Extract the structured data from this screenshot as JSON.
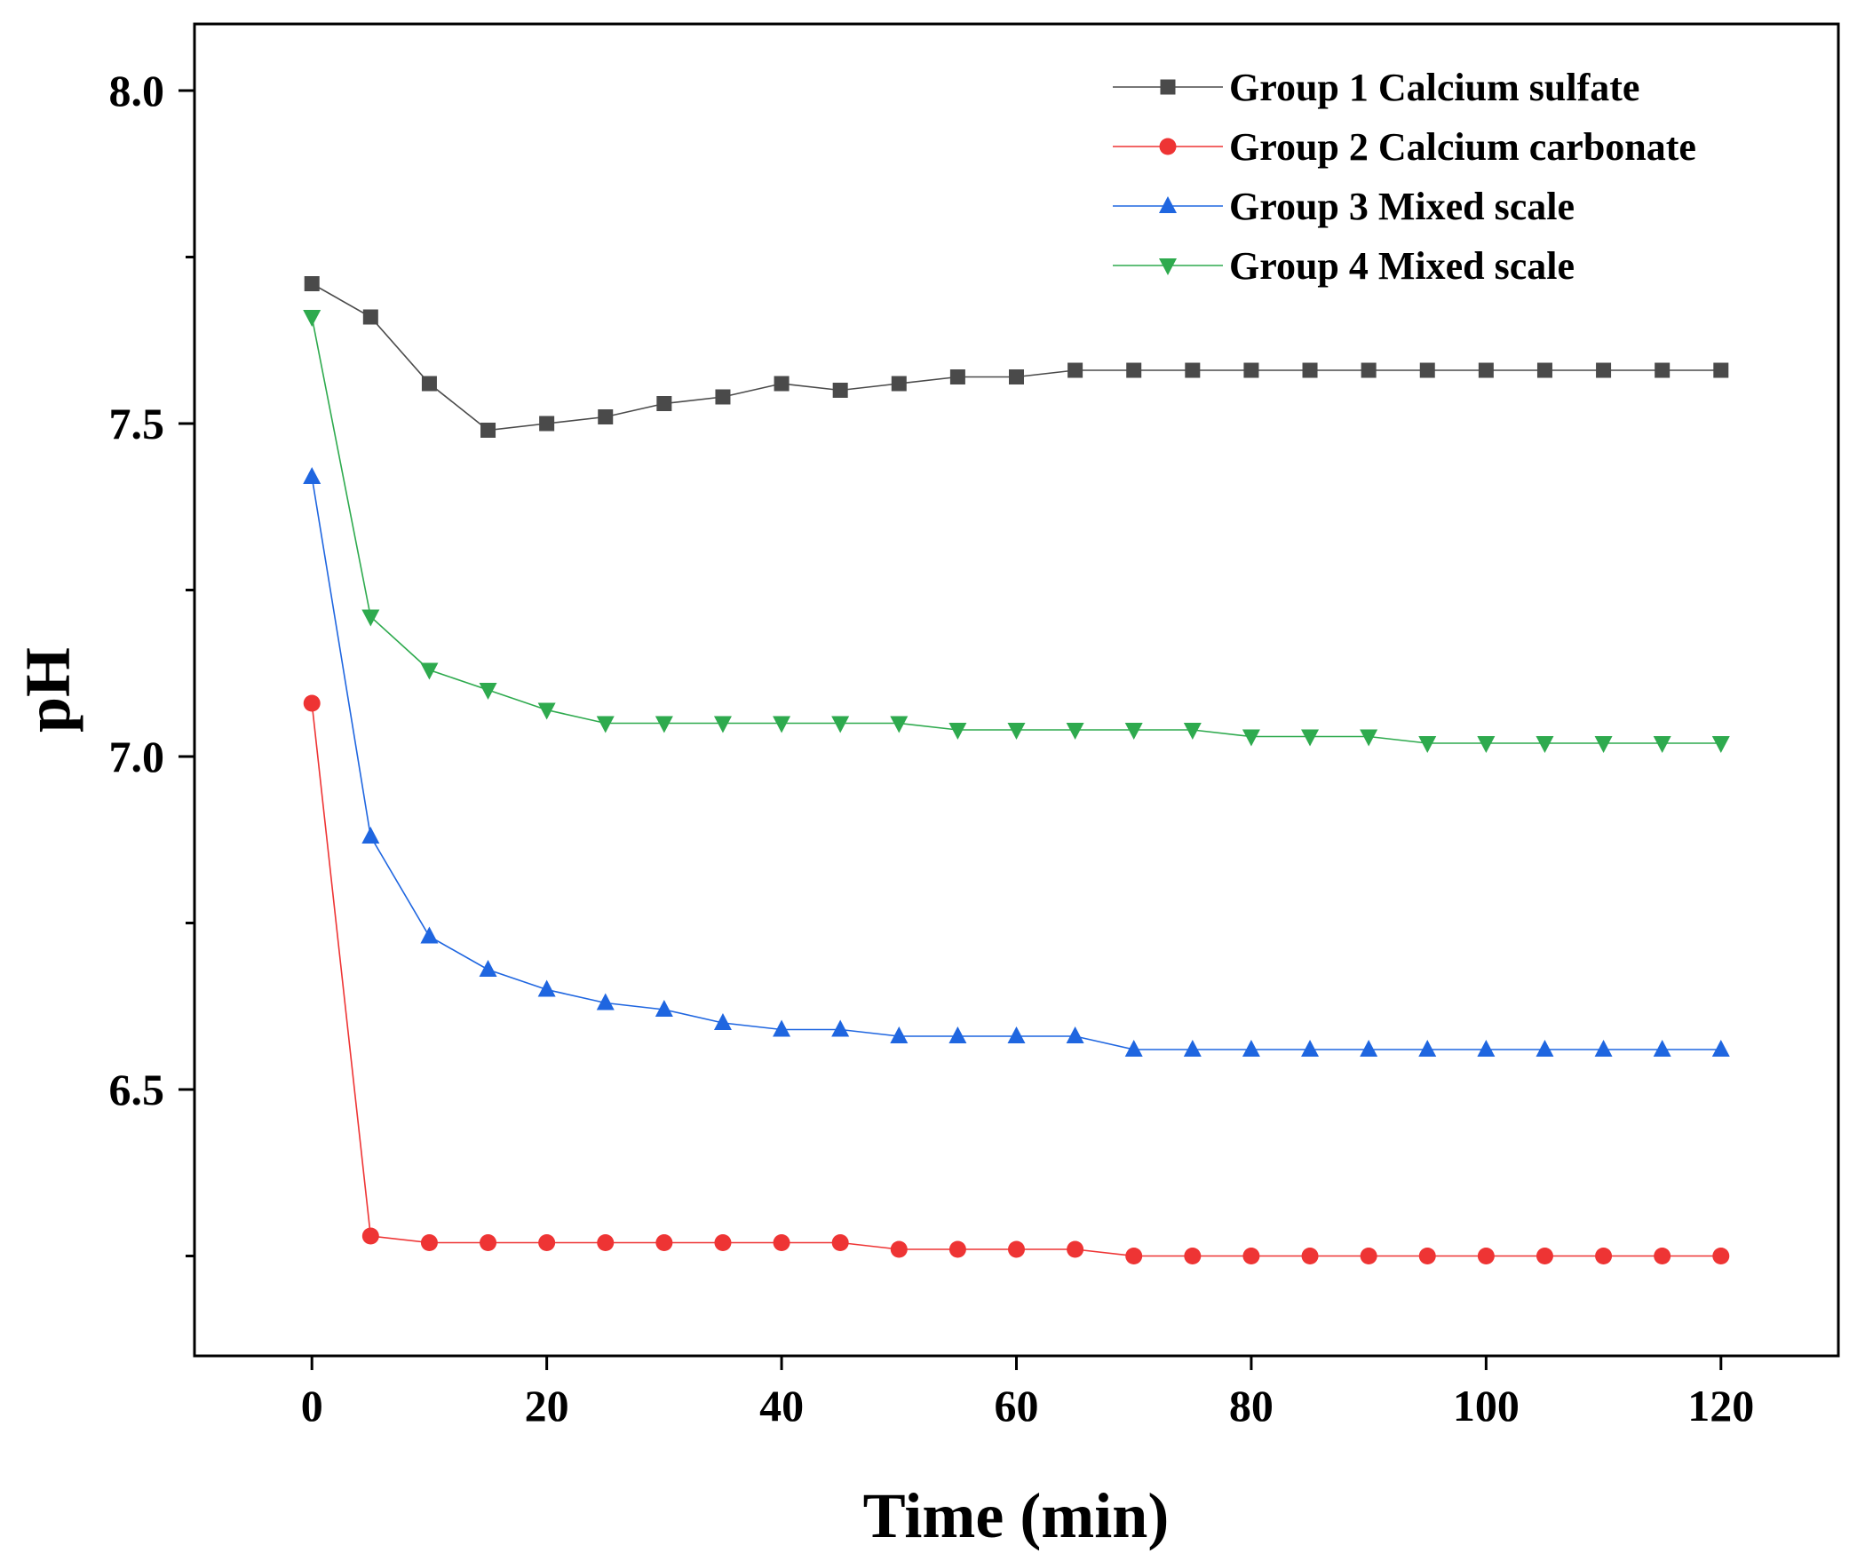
{
  "chart_data": {
    "type": "line",
    "title": "",
    "xlabel": "Time (min)",
    "ylabel": "pH",
    "xlim": [
      -10,
      130
    ],
    "ylim": [
      6.1,
      8.1
    ],
    "xticks": [
      0,
      20,
      40,
      60,
      80,
      100,
      120
    ],
    "xtick_labels": [
      "0",
      "20",
      "40",
      "60",
      "80",
      "100",
      "120"
    ],
    "yticks": [
      6.5,
      7.0,
      7.5,
      8.0
    ],
    "ytick_labels": [
      "6.5",
      "7.0",
      "7.5",
      "8.0"
    ],
    "yminor_ticks": [
      6.25,
      6.75,
      7.25,
      7.75
    ],
    "grid": false,
    "legend_position": "top-right",
    "x": [
      0,
      5,
      10,
      15,
      20,
      25,
      30,
      35,
      40,
      45,
      50,
      55,
      60,
      65,
      70,
      75,
      80,
      85,
      90,
      95,
      100,
      105,
      110,
      115,
      120
    ],
    "series": [
      {
        "name": "Group 1 Calcium sulfate",
        "color": "#4a4a4a",
        "marker": "square",
        "values": [
          7.71,
          7.66,
          7.56,
          7.49,
          7.5,
          7.51,
          7.53,
          7.54,
          7.56,
          7.55,
          7.56,
          7.57,
          7.57,
          7.58,
          7.58,
          7.58,
          7.58,
          7.58,
          7.58,
          7.58,
          7.58,
          7.58,
          7.58,
          7.58,
          7.58
        ]
      },
      {
        "name": "Group 2 Calcium carbonate",
        "color": "#ee3434",
        "marker": "circle",
        "values": [
          7.08,
          6.28,
          6.27,
          6.27,
          6.27,
          6.27,
          6.27,
          6.27,
          6.27,
          6.27,
          6.26,
          6.26,
          6.26,
          6.26,
          6.25,
          6.25,
          6.25,
          6.25,
          6.25,
          6.25,
          6.25,
          6.25,
          6.25,
          6.25,
          6.25
        ]
      },
      {
        "name": "Group 3 Mixed scale",
        "color": "#1f66e0",
        "marker": "triangle-up",
        "values": [
          7.42,
          6.88,
          6.73,
          6.68,
          6.65,
          6.63,
          6.62,
          6.6,
          6.59,
          6.59,
          6.58,
          6.58,
          6.58,
          6.58,
          6.56,
          6.56,
          6.56,
          6.56,
          6.56,
          6.56,
          6.56,
          6.56,
          6.56,
          6.56,
          6.56
        ]
      },
      {
        "name": "Group 4 Mixed scale",
        "color": "#2eaa4e",
        "marker": "triangle-down",
        "values": [
          7.66,
          7.21,
          7.13,
          7.1,
          7.07,
          7.05,
          7.05,
          7.05,
          7.05,
          7.05,
          7.05,
          7.04,
          7.04,
          7.04,
          7.04,
          7.04,
          7.03,
          7.03,
          7.03,
          7.02,
          7.02,
          7.02,
          7.02,
          7.02,
          7.02
        ]
      }
    ]
  }
}
